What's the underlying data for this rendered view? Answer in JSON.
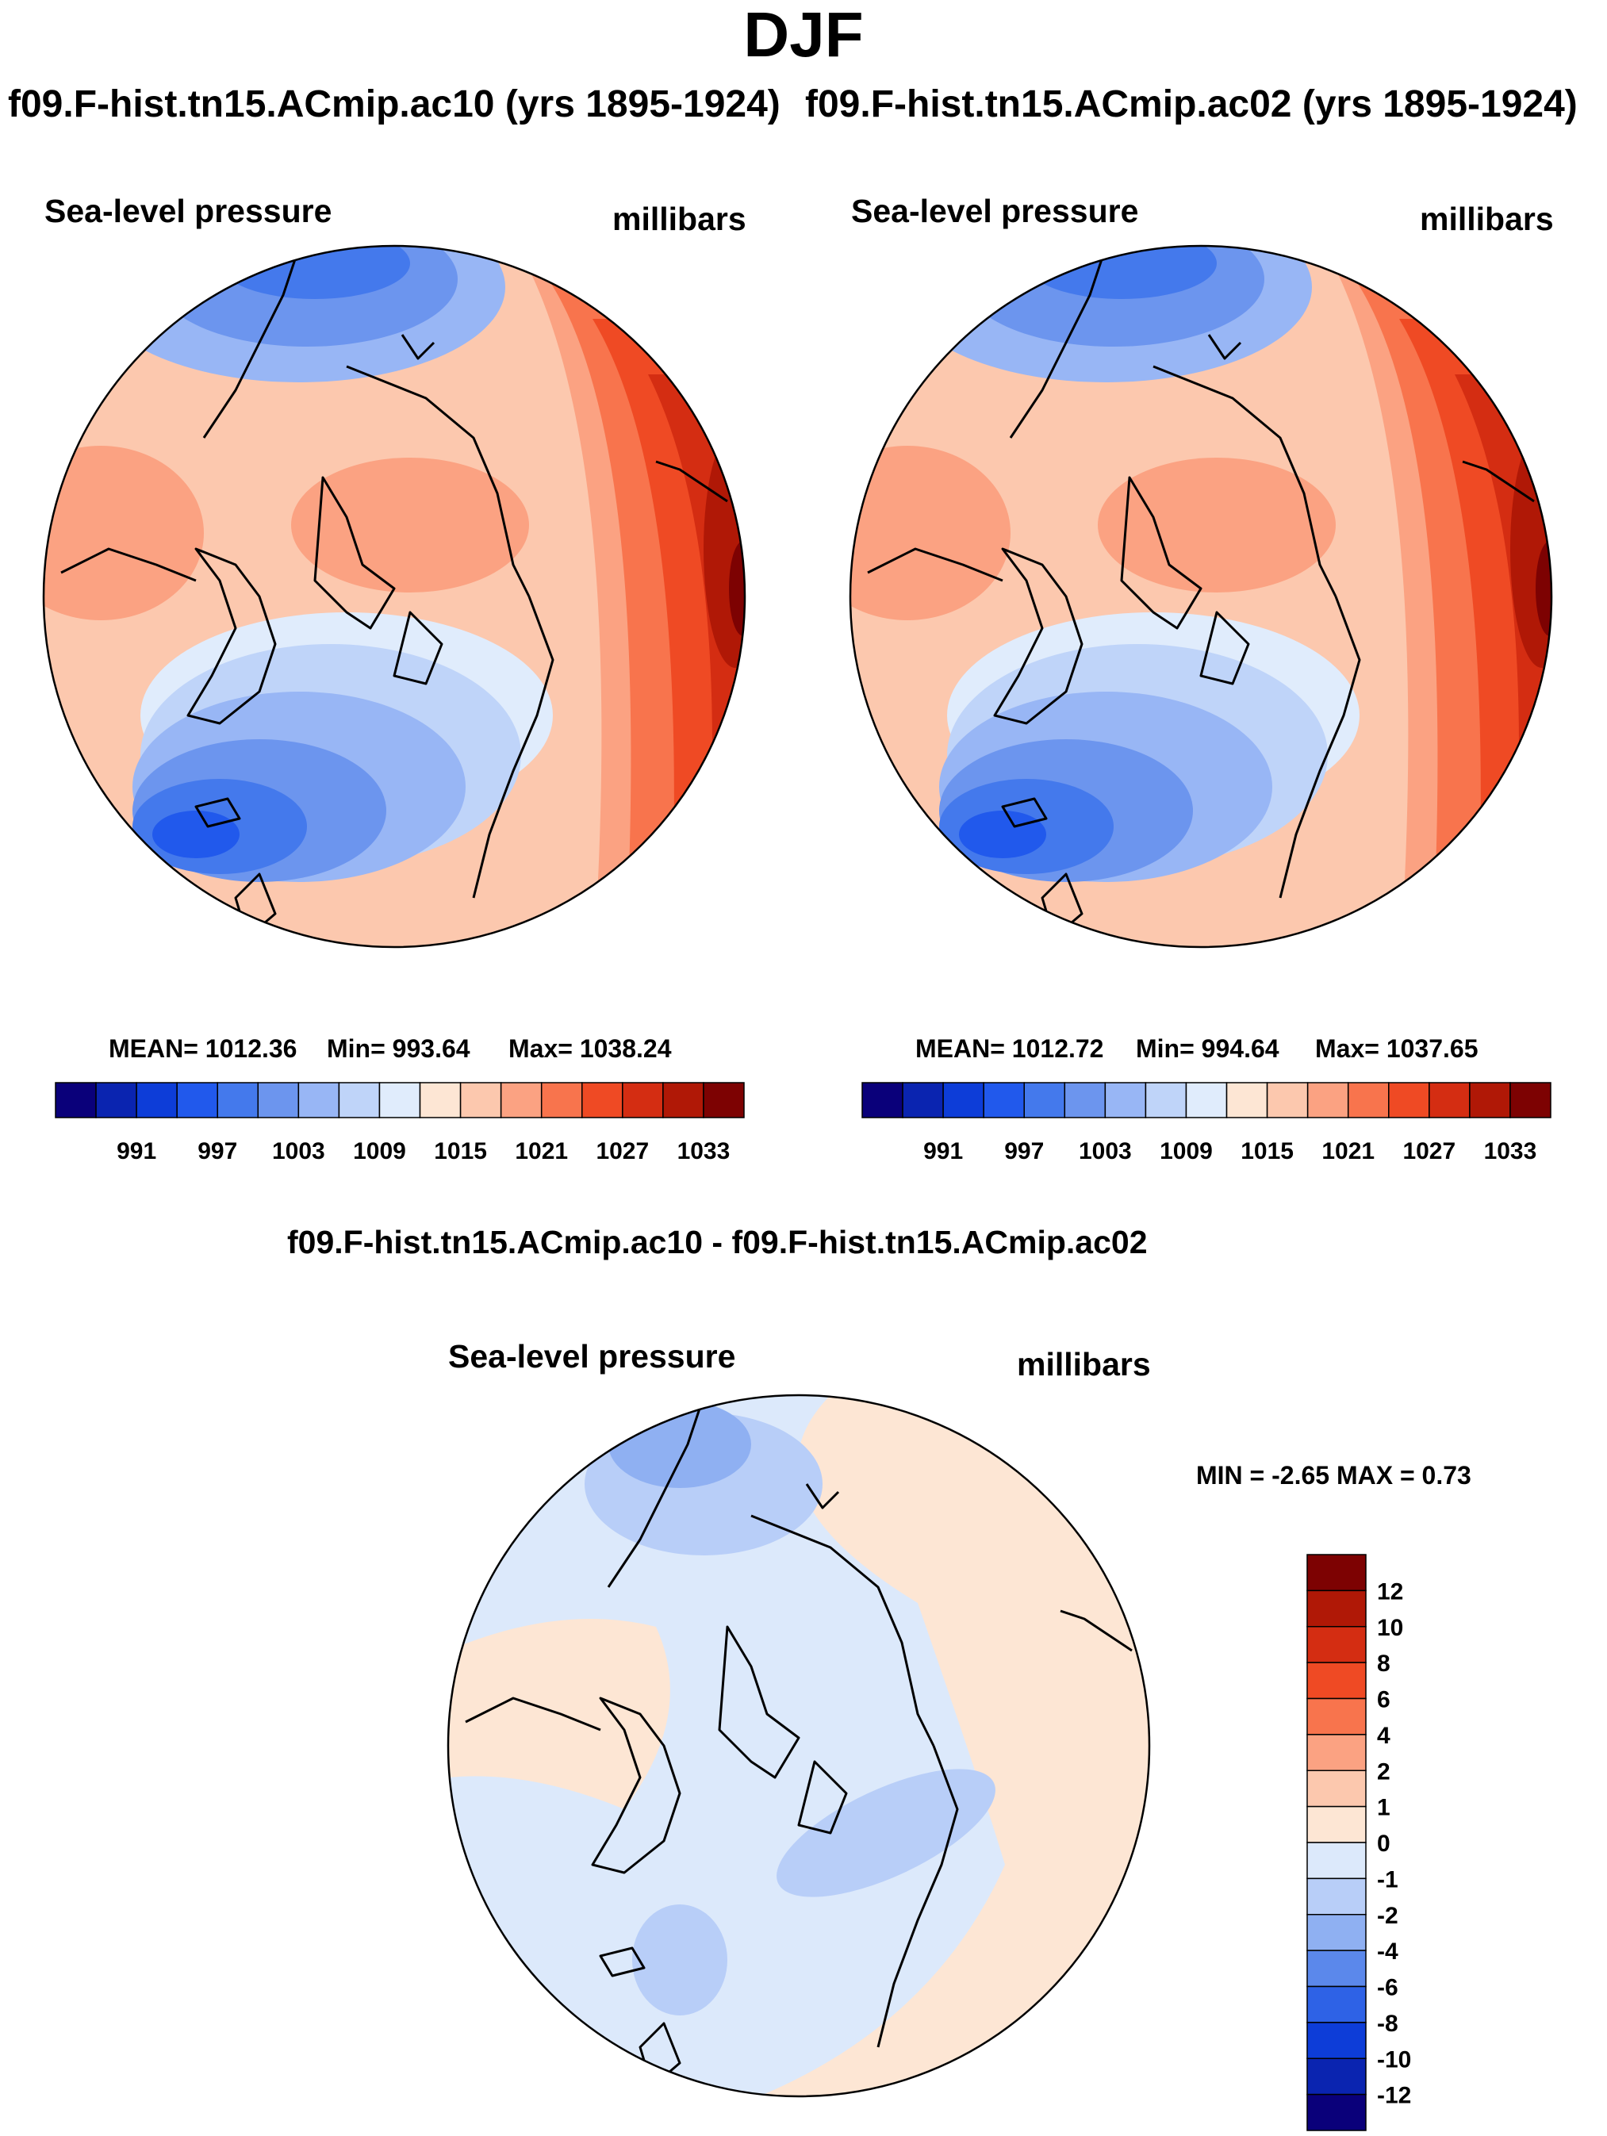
{
  "figure": {
    "title": "DJF",
    "header_left": "f09.F-hist.tn15.ACmip.ac10 (yrs 1895-1924)",
    "header_right": "f09.F-hist.tn15.ACmip.ac02 (yrs 1895-1924)",
    "diff_title": "f09.F-hist.tn15.ACmip.ac10 - f09.F-hist.tn15.ACmip.ac02"
  },
  "chart_data": [
    {
      "type": "heatmap",
      "projection": "north-polar-stereographic",
      "variable": "Sea-level pressure",
      "units": "millibars",
      "stats": {
        "mean_label": "MEAN= 1012.36",
        "min_label": "Min= 993.64",
        "max_label": "Max= 1038.24",
        "mean": 1012.36,
        "min": 993.64,
        "max": 1038.24
      },
      "levels": [
        988,
        991,
        994,
        997,
        1000,
        1003,
        1006,
        1009,
        1012,
        1015,
        1018,
        1021,
        1024,
        1027,
        1030,
        1033
      ],
      "tick_labels": [
        "991",
        "997",
        "1003",
        "1009",
        "1015",
        "1021",
        "1027",
        "1033"
      ],
      "colors": [
        "#0a007a",
        "#0a24b0",
        "#0d3dd8",
        "#2159ec",
        "#4479ec",
        "#6c95ee",
        "#98b6f5",
        "#bfd4f9",
        "#e0ecfc",
        "#fde6d4",
        "#fcc8ae",
        "#fba282",
        "#f8744d",
        "#ef4a24",
        "#d42d12",
        "#b01806",
        "#7d0202"
      ]
    },
    {
      "type": "heatmap",
      "projection": "north-polar-stereographic",
      "variable": "Sea-level pressure",
      "units": "millibars",
      "stats": {
        "mean_label": "MEAN= 1012.72",
        "min_label": "Min= 994.64",
        "max_label": "Max= 1037.65",
        "mean": 1012.72,
        "min": 994.64,
        "max": 1037.65
      },
      "levels": [
        988,
        991,
        994,
        997,
        1000,
        1003,
        1006,
        1009,
        1012,
        1015,
        1018,
        1021,
        1024,
        1027,
        1030,
        1033
      ],
      "tick_labels": [
        "991",
        "997",
        "1003",
        "1009",
        "1015",
        "1021",
        "1027",
        "1033"
      ],
      "colors": [
        "#0a007a",
        "#0a24b0",
        "#0d3dd8",
        "#2159ec",
        "#4479ec",
        "#6c95ee",
        "#98b6f5",
        "#bfd4f9",
        "#e0ecfc",
        "#fde6d4",
        "#fcc8ae",
        "#fba282",
        "#f8744d",
        "#ef4a24",
        "#d42d12",
        "#b01806",
        "#7d0202"
      ]
    },
    {
      "type": "heatmap",
      "projection": "north-polar-stereographic",
      "variable": "Sea-level pressure",
      "units": "millibars",
      "stats": {
        "label": "MIN =  -2.65 MAX =   0.73",
        "min": -2.65,
        "max": 0.73
      },
      "levels": [
        -12,
        -10,
        -8,
        -6,
        -4,
        -2,
        -1,
        0,
        1,
        2,
        4,
        6,
        8,
        10,
        12
      ],
      "tick_labels": [
        "12",
        "10",
        "8",
        "6",
        "4",
        "2",
        "1",
        "0",
        "-1",
        "-2",
        "-4",
        "-6",
        "-8",
        "-10",
        "-12"
      ],
      "colors": [
        "#7d0202",
        "#b01806",
        "#d42d12",
        "#ef4a24",
        "#f8744d",
        "#fba282",
        "#fcc8ae",
        "#fde6d4",
        "#dce9fb",
        "#b8cef8",
        "#8fb0f2",
        "#5b88eb",
        "#2e62e6",
        "#0d3dd8",
        "#0a24b0",
        "#0a007a"
      ]
    }
  ]
}
